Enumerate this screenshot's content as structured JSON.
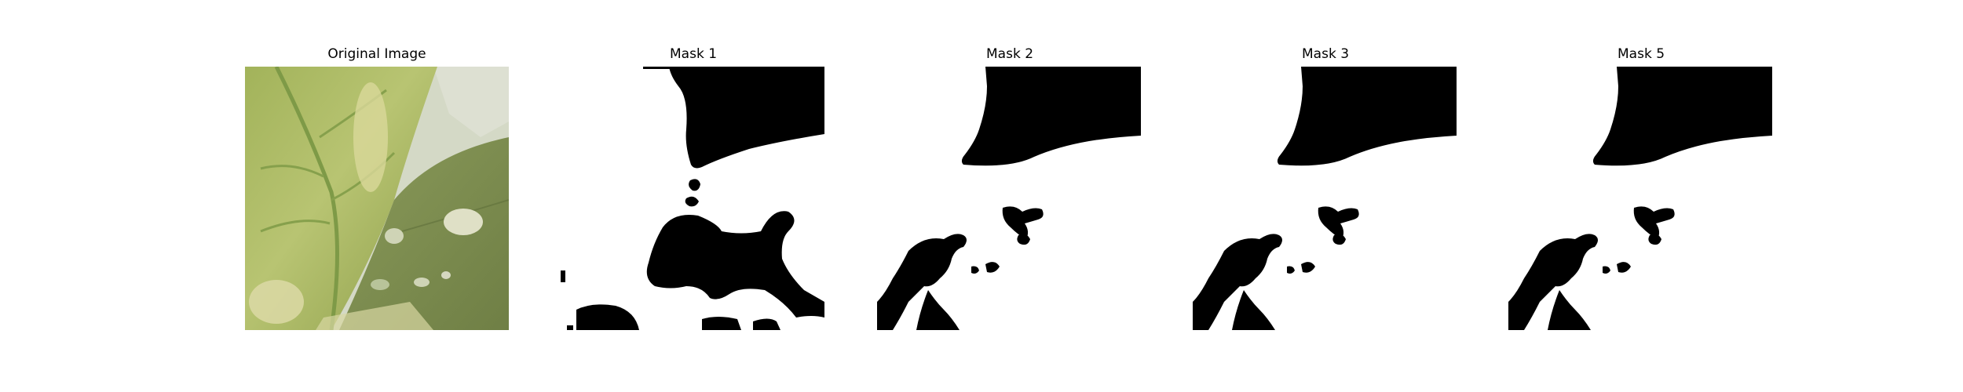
{
  "figure": {
    "panels": [
      {
        "title": "Original Image",
        "kind": "photo",
        "subject": "leaf"
      },
      {
        "title": "Mask 1",
        "kind": "mask"
      },
      {
        "title": "Mask 2",
        "kind": "mask"
      },
      {
        "title": "Mask 3",
        "kind": "mask"
      },
      {
        "title": "Mask 5",
        "kind": "mask"
      }
    ]
  },
  "colors": {
    "background": "#ffffff",
    "mask_fg": "#000000",
    "mask_bg": "#ffffff",
    "leaf_light": "#c9cf86",
    "leaf_mid": "#98aa4e",
    "leaf_dark": "#5e7533",
    "leaf2": "#7f8f52",
    "sky": "#d8dccc"
  }
}
